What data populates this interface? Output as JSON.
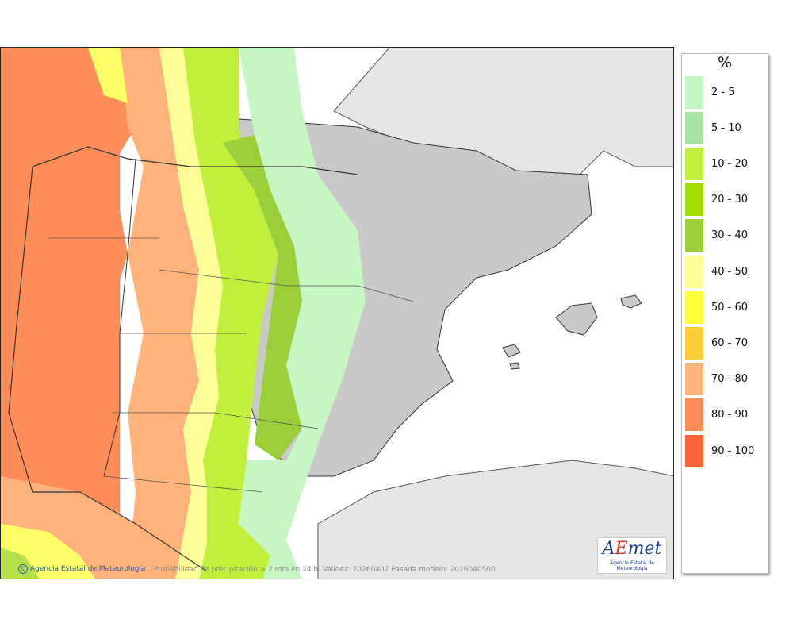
{
  "legend": {
    "unit": "%",
    "items": [
      {
        "label": "2 - 5",
        "color": "#c6f7c2"
      },
      {
        "label": "5 - 10",
        "color": "#a9e3a4"
      },
      {
        "label": "10 - 20",
        "color": "#c1f03c"
      },
      {
        "label": "20 - 30",
        "color": "#a4de00"
      },
      {
        "label": "30 - 40",
        "color": "#9bcf3a"
      },
      {
        "label": "40 - 50",
        "color": "#ffff99"
      },
      {
        "label": "50 - 60",
        "color": "#ffff3a"
      },
      {
        "label": "60 - 70",
        "color": "#ffcd38"
      },
      {
        "label": "70 - 80",
        "color": "#ffb27a"
      },
      {
        "label": "80 - 90",
        "color": "#ff8d5a"
      },
      {
        "label": "90 - 100",
        "color": "#ff6438"
      }
    ]
  },
  "map": {
    "credit": "Agencia Estatal de Meteorología",
    "caption": "Probabilidad de precipitación > 2 mm en 24 h. Validez: 20260407 Pasada modelo: 2026040500",
    "logo_text": "AEmet",
    "logo_subtitle": "Agencia Estatal de Meteorología"
  }
}
